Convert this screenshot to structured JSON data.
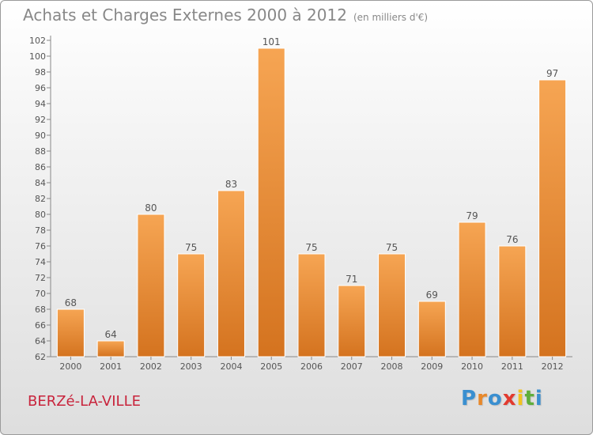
{
  "title": "Achats et Charges Externes 2000 à 2012",
  "unit": "(en milliers d'€)",
  "commune": "BERZé-LA-VILLE",
  "logo": {
    "text": "Proxiti",
    "colors": [
      "#3a8fd0",
      "#e8882a",
      "#3a8fd0",
      "#e23a2e",
      "#f2c21e",
      "#5fae3b",
      "#3a8fd0"
    ]
  },
  "colors": {
    "bar_light": "#f6a553",
    "bar_dark": "#d4731f",
    "axis": "#888888",
    "text": "#555555",
    "title_text": "#888888",
    "commune_text": "#c8243c"
  },
  "chart_data": {
    "type": "bar",
    "title": "Achats et Charges Externes 2000 à 2012",
    "categories": [
      "2000",
      "2001",
      "2002",
      "2003",
      "2004",
      "2005",
      "2006",
      "2007",
      "2008",
      "2009",
      "2010",
      "2011",
      "2012"
    ],
    "values": [
      68,
      64,
      80,
      75,
      83,
      101,
      75,
      71,
      75,
      69,
      79,
      76,
      97
    ],
    "ylim": [
      62,
      102
    ],
    "yticks": [
      62,
      64,
      66,
      68,
      70,
      72,
      74,
      76,
      78,
      80,
      82,
      84,
      86,
      88,
      90,
      92,
      94,
      96,
      98,
      100,
      102
    ],
    "grid": false,
    "data_labels": true
  }
}
